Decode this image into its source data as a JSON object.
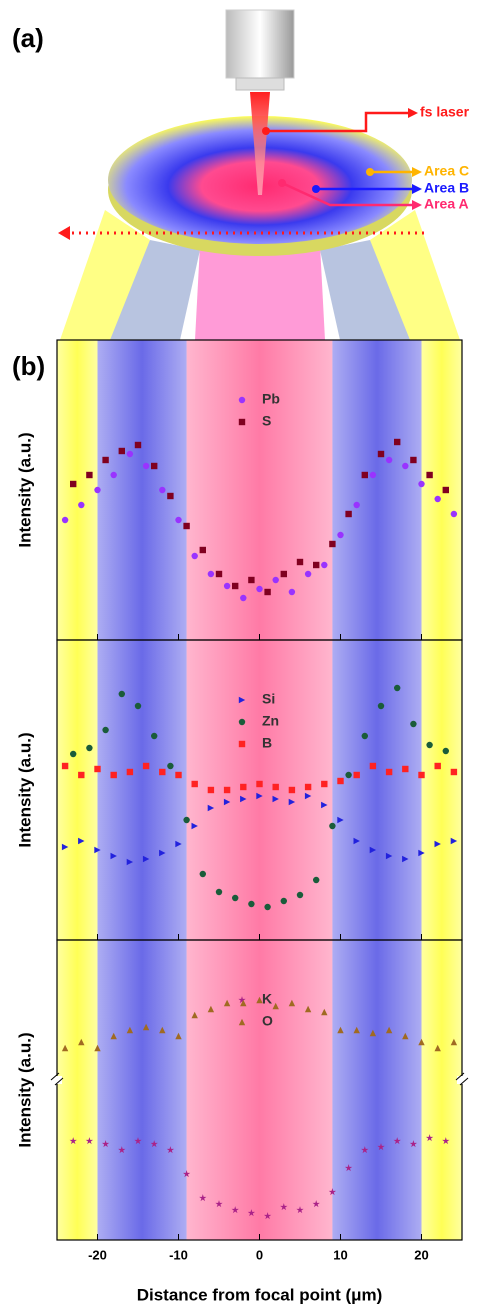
{
  "figure_label_a": "(a)",
  "figure_label_b": "(b)",
  "callouts": [
    {
      "text": "fs laser",
      "color": "#ff1a1a"
    },
    {
      "text": "Area C",
      "color": "#ffb400"
    },
    {
      "text": "Area B",
      "color": "#1a1aff"
    },
    {
      "text": "Area A",
      "color": "#ff2a70"
    }
  ],
  "bands": [
    {
      "from": -25,
      "to": -20,
      "color": "#ffff55"
    },
    {
      "from": -20,
      "to": -9,
      "color": "#6a6ae8"
    },
    {
      "from": -9,
      "to": 9,
      "color": "#ff7aa6"
    },
    {
      "from": 9,
      "to": 20,
      "color": "#6a6ae8"
    },
    {
      "from": 20,
      "to": 25,
      "color": "#ffff55"
    }
  ],
  "chart_data": [
    {
      "type": "scatter",
      "ylabel": "Intensity (a.u.)",
      "xlim": [
        -25,
        25
      ],
      "ylim": [
        0,
        100
      ],
      "xticks": [
        -20,
        -10,
        0,
        10,
        20
      ],
      "series": [
        {
          "name": "Pb",
          "color": "#9933ff",
          "marker": "circle",
          "x": [
            -24,
            -22,
            -20,
            -18,
            -16,
            -14,
            -12,
            -10,
            -8,
            -6,
            -4,
            -2,
            0,
            2,
            4,
            6,
            8,
            10,
            12,
            14,
            16,
            18,
            20,
            22,
            24
          ],
          "values": [
            40,
            45,
            50,
            55,
            62,
            58,
            50,
            40,
            28,
            22,
            18,
            14,
            17,
            20,
            16,
            22,
            25,
            35,
            45,
            55,
            60,
            58,
            52,
            47,
            42
          ]
        },
        {
          "name": "S",
          "color": "#800020",
          "marker": "square",
          "x": [
            -23,
            -21,
            -19,
            -17,
            -15,
            -13,
            -11,
            -9,
            -7,
            -5,
            -3,
            -1,
            1,
            3,
            5,
            7,
            9,
            11,
            13,
            15,
            17,
            19,
            21,
            23
          ],
          "values": [
            52,
            55,
            60,
            63,
            65,
            58,
            48,
            38,
            30,
            22,
            18,
            20,
            16,
            22,
            26,
            25,
            32,
            42,
            55,
            62,
            66,
            60,
            55,
            50
          ]
        }
      ]
    },
    {
      "type": "scatter",
      "ylabel": "Intensity (a.u.)",
      "xlim": [
        -25,
        25
      ],
      "ylim": [
        0,
        100
      ],
      "xticks": [
        -20,
        -10,
        0,
        10,
        20
      ],
      "series": [
        {
          "name": "Si",
          "color": "#2222dd",
          "marker": "triangle-right",
          "x": [
            -24,
            -22,
            -20,
            -18,
            -16,
            -14,
            -12,
            -10,
            -8,
            -6,
            -4,
            -2,
            0,
            2,
            4,
            6,
            8,
            10,
            12,
            14,
            16,
            18,
            20,
            22,
            24
          ],
          "values": [
            31,
            33,
            30,
            28,
            26,
            27,
            29,
            32,
            38,
            44,
            46,
            47,
            48,
            47,
            46,
            48,
            45,
            40,
            33,
            30,
            28,
            27,
            29,
            32,
            33
          ]
        },
        {
          "name": "Zn",
          "color": "#1a5c3a",
          "marker": "circle",
          "x": [
            -23,
            -21,
            -19,
            -17,
            -15,
            -13,
            -11,
            -9,
            -7,
            -5,
            -3,
            -1,
            1,
            3,
            5,
            7,
            9,
            11,
            13,
            15,
            17,
            19,
            21,
            23
          ],
          "values": [
            62,
            64,
            70,
            82,
            78,
            68,
            58,
            40,
            22,
            16,
            14,
            12,
            11,
            13,
            15,
            20,
            38,
            55,
            68,
            78,
            84,
            72,
            65,
            63
          ]
        },
        {
          "name": "B",
          "color": "#ff2222",
          "marker": "square",
          "x": [
            -24,
            -22,
            -20,
            -18,
            -16,
            -14,
            -12,
            -10,
            -8,
            -6,
            -4,
            -2,
            0,
            2,
            4,
            6,
            8,
            10,
            12,
            14,
            16,
            18,
            20,
            22,
            24
          ],
          "values": [
            58,
            55,
            57,
            55,
            56,
            58,
            56,
            55,
            52,
            50,
            50,
            51,
            52,
            51,
            50,
            51,
            52,
            53,
            55,
            58,
            56,
            57,
            55,
            58,
            56
          ]
        }
      ]
    },
    {
      "type": "scatter",
      "ylabel": "Intensity (a.u.)",
      "xlabel": "Distance from focal point (μm)",
      "xlim": [
        -25,
        25
      ],
      "ylim": [
        0,
        100
      ],
      "xticks": [
        -20,
        -10,
        0,
        10,
        20
      ],
      "axis_break": true,
      "series": [
        {
          "name": "K",
          "color": "#aa2288",
          "marker": "star",
          "x": [
            -23,
            -21,
            -19,
            -17,
            -15,
            -13,
            -11,
            -9,
            -7,
            -5,
            -3,
            -1,
            1,
            3,
            5,
            7,
            9,
            11,
            13,
            15,
            17,
            19,
            21,
            23
          ],
          "values": [
            33,
            33,
            32,
            30,
            33,
            32,
            30,
            22,
            14,
            12,
            10,
            9,
            8,
            11,
            10,
            12,
            16,
            24,
            30,
            31,
            33,
            32,
            34,
            33
          ]
        },
        {
          "name": "O",
          "color": "#a06a22",
          "marker": "triangle",
          "x": [
            -24,
            -22,
            -20,
            -18,
            -16,
            -14,
            -12,
            -10,
            -8,
            -6,
            -4,
            -2,
            0,
            2,
            4,
            6,
            8,
            10,
            12,
            14,
            16,
            18,
            20,
            22,
            24
          ],
          "values": [
            64,
            66,
            64,
            68,
            70,
            71,
            70,
            68,
            75,
            77,
            79,
            79,
            80,
            78,
            79,
            77,
            76,
            70,
            70,
            69,
            70,
            68,
            66,
            64,
            66
          ]
        }
      ]
    }
  ]
}
